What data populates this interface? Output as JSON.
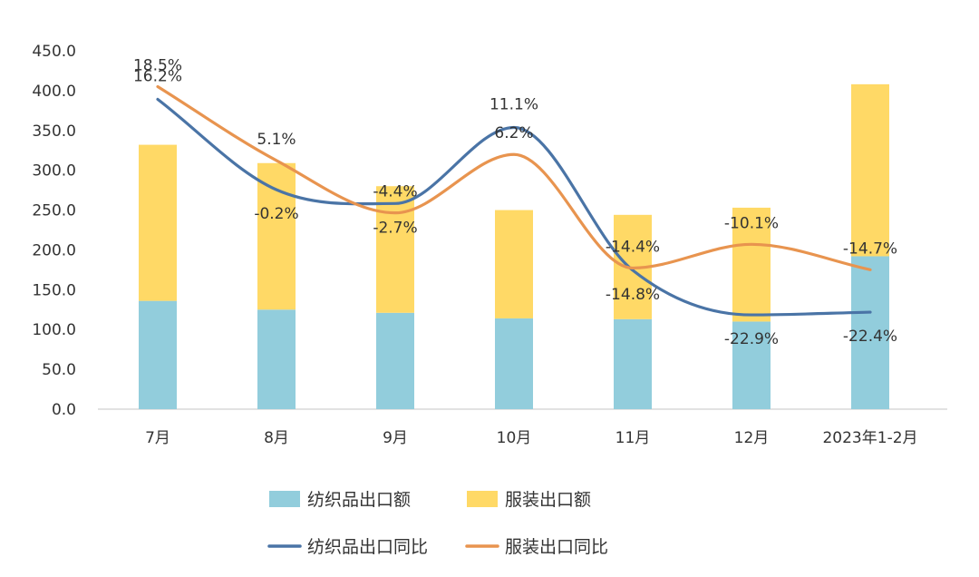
{
  "chart_data": {
    "type": "bar",
    "stacked": true,
    "categories": [
      "7月",
      "8月",
      "9月",
      "10月",
      "11月",
      "12月",
      "2023年1-2月"
    ],
    "ylim": [
      0,
      450
    ],
    "yticks": [
      "0.0",
      "50.0",
      "100.0",
      "150.0",
      "200.0",
      "250.0",
      "300.0",
      "350.0",
      "400.0",
      "450.0"
    ],
    "grid": false,
    "legend_position": "bottom",
    "series": [
      {
        "name": "纺织品出口额",
        "kind": "bar",
        "color": "#92CDDC",
        "values": [
          136,
          125,
          121,
          114,
          113,
          110,
          192
        ]
      },
      {
        "name": "服装出口额",
        "kind": "bar",
        "color": "#FFD966",
        "values": [
          196,
          184,
          159,
          136,
          131,
          143,
          216
        ]
      },
      {
        "name": "纺织品出口同比",
        "kind": "line",
        "color": "#4A74A6",
        "values": [
          16.2,
          -0.2,
          -2.7,
          11.1,
          -14.8,
          -22.9,
          -22.4
        ],
        "labels": [
          "16.2%",
          "-0.2%",
          "-2.7%",
          "11.1%",
          "-14.8%",
          "-22.9%",
          "-22.4%"
        ]
      },
      {
        "name": "服装出口同比",
        "kind": "line",
        "color": "#E8944F",
        "values": [
          18.5,
          5.1,
          -4.4,
          6.2,
          -14.4,
          -10.1,
          -14.7
        ],
        "labels": [
          "18.5%",
          "5.1%",
          "-4.4%",
          "6.2%",
          "-14.4%",
          "-10.1%",
          "-14.7%"
        ]
      }
    ]
  }
}
